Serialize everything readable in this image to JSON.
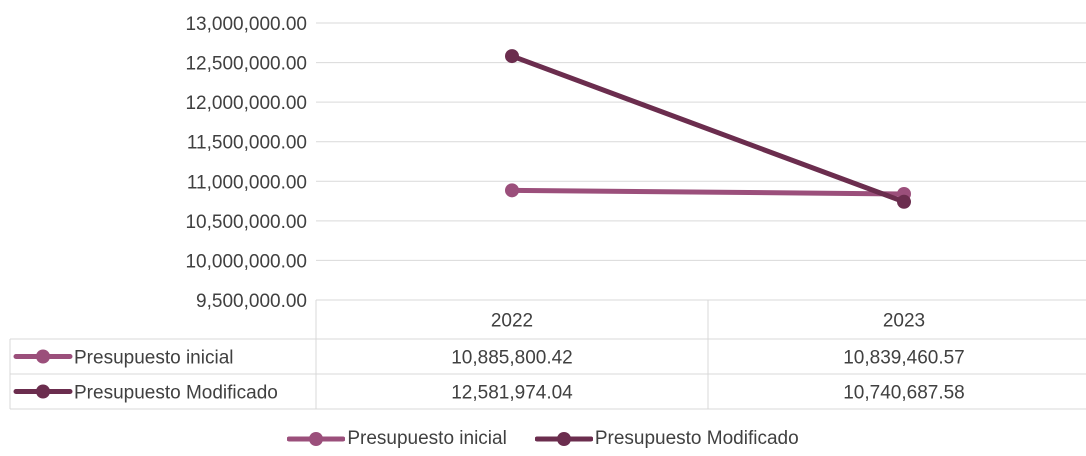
{
  "chart_data": {
    "type": "line",
    "title": "",
    "xlabel": "",
    "ylabel": "",
    "categories": [
      "2022",
      "2023"
    ],
    "ylim": [
      9500000,
      13000000
    ],
    "yticks": [
      13000000,
      12500000,
      12000000,
      11500000,
      11000000,
      10500000,
      10000000,
      9500000
    ],
    "ytick_labels": [
      "13,000,000.00",
      "12,500,000.00",
      "12,000,000.00",
      "11,500,000.00",
      "11,000,000.00",
      "10,500,000.00",
      "10,000,000.00",
      "9,500,000.00"
    ],
    "grid": true,
    "legend": "bottom",
    "data_table": true,
    "series": [
      {
        "name": "Presupuesto inicial",
        "color": "#9B4F7B",
        "values": [
          10885800.42,
          10839460.57
        ],
        "value_labels": [
          "10,885,800.42",
          "10,839,460.57"
        ]
      },
      {
        "name": "Presupuesto Modificado",
        "color": "#6B2D4E",
        "values": [
          12581974.04,
          10740687.58
        ],
        "value_labels": [
          "12,581,974.04",
          "10,740,687.58"
        ]
      }
    ]
  }
}
